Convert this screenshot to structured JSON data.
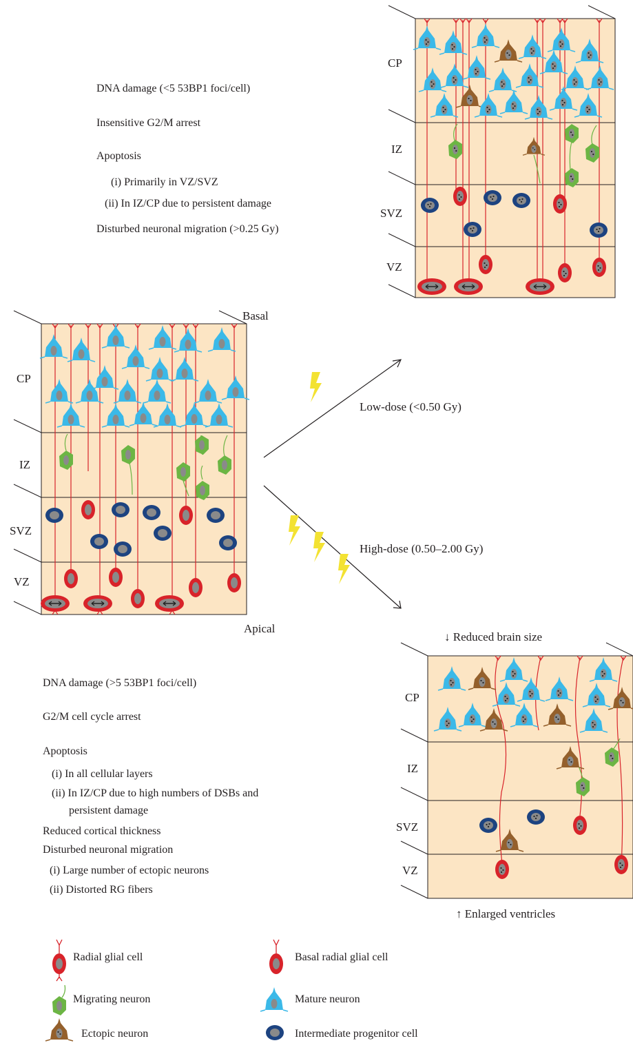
{
  "layers": [
    "CP",
    "IZ",
    "SVZ",
    "VZ"
  ],
  "orientation": {
    "basal": "Basal",
    "apical": "Apical"
  },
  "arrows": {
    "low": "Low-dose (<0.50 Gy)",
    "high": "High-dose (0.50–2.00 Gy)"
  },
  "low_dose_effects": [
    "DNA damage (<5 53BP1 foci/cell)",
    "Insensitive G2/M arrest",
    "Apoptosis",
    "(i) Primarily in VZ/SVZ",
    "(ii) In IZ/CP due to persistent damage",
    "Disturbed neuronal migration (>0.25 Gy)"
  ],
  "high_dose_effects": [
    "DNA damage (>5 53BP1 foci/cell)",
    "G2/M cell cycle arrest",
    "Apoptosis",
    "(i) In all cellular layers",
    "(ii) In IZ/CP due to high numbers of DSBs and",
    "persistent damage",
    "Reduced cortical thickness",
    "Disturbed neuronal migration",
    "(i) Large number of ectopic neurons",
    "(ii) Distorted RG fibers"
  ],
  "high_dose_outcomes": {
    "top": "↓ Reduced brain size",
    "bottom": "↑ Enlarged ventricles"
  },
  "legend": [
    {
      "label": "Radial glial cell",
      "icon": "radial-glial-cell-icon"
    },
    {
      "label": "Basal radial glial cell",
      "icon": "basal-radial-glial-cell-icon"
    },
    {
      "label": "Migrating neuron",
      "icon": "migrating-neuron-icon"
    },
    {
      "label": "Mature neuron",
      "icon": "mature-neuron-icon"
    },
    {
      "label": "Ectopic neuron",
      "icon": "ectopic-neuron-icon"
    },
    {
      "label": "Intermediate progenitor cell",
      "icon": "intermediate-progenitor-icon"
    }
  ],
  "colors": {
    "tissue": "#fce5c4",
    "fiber": "#d8232a",
    "mature": "#3bb9e8",
    "migrating": "#6cb544",
    "ectopic": "#94602c",
    "intermediate": "#1d4380",
    "radial": "#d8232a",
    "nucleus": "#8a8a8a",
    "bolt": "#f3e232"
  }
}
